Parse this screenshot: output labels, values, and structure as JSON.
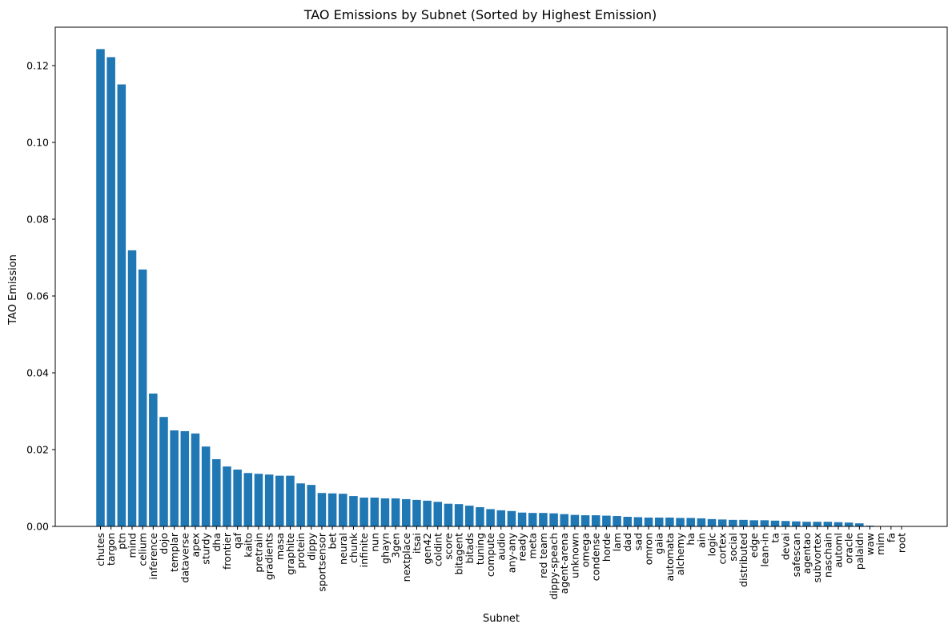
{
  "chart_data": {
    "type": "bar",
    "title": "TAO Emissions by Subnet (Sorted by Highest Emission)",
    "xlabel": "Subnet",
    "ylabel": "TAO Emission",
    "ylim": [
      0,
      0.13
    ],
    "yticks": [
      "0.00",
      "0.02",
      "0.04",
      "0.06",
      "0.08",
      "0.10",
      "0.12"
    ],
    "bar_color": "#1f77b4",
    "grid": false,
    "categories": [
      "chutes",
      "targon",
      "ptn",
      "mind",
      "celium",
      "inference",
      "dojo",
      "templar",
      "dataverse",
      "apex",
      "sturdy",
      "dha",
      "frontier",
      "qaf",
      "kaito",
      "pretrain",
      "gradients",
      "masa",
      "graphite",
      "protein",
      "dippy",
      "sportsensor",
      "bet",
      "neural",
      "chunk",
      "infinite",
      "nun",
      "ghayn",
      "3gen",
      "nextplace",
      "itsai",
      "gen42",
      "coldint",
      "score",
      "bitagent",
      "bitads",
      "tuning",
      "compute",
      "audio",
      "any-any",
      "ready",
      "meta",
      "red team",
      "dippy-speach",
      "agent-arena",
      "unknown",
      "omega",
      "condense",
      "horde",
      "lam",
      "dad",
      "sad",
      "omron",
      "gaia",
      "automata",
      "alchemy",
      "ha",
      "ain",
      "logic",
      "cortex",
      "social",
      "distributed",
      "edge",
      "lean-in",
      "ta",
      "devai",
      "safescan",
      "agentao",
      "subvortex",
      "naschain",
      "automl",
      "oracle",
      "palaidn",
      "waw",
      "mim",
      "fa",
      "root"
    ],
    "values": [
      0.1243,
      0.1222,
      0.1151,
      0.0719,
      0.0669,
      0.0346,
      0.0285,
      0.025,
      0.0248,
      0.0242,
      0.0208,
      0.0175,
      0.0156,
      0.0148,
      0.0139,
      0.0137,
      0.0135,
      0.0132,
      0.0132,
      0.0112,
      0.0108,
      0.0087,
      0.0086,
      0.0085,
      0.0079,
      0.0075,
      0.0075,
      0.0073,
      0.0073,
      0.0071,
      0.0069,
      0.0067,
      0.0064,
      0.0059,
      0.0058,
      0.0054,
      0.005,
      0.0045,
      0.0042,
      0.004,
      0.0036,
      0.0035,
      0.0035,
      0.0034,
      0.0032,
      0.003,
      0.0029,
      0.0029,
      0.0028,
      0.0027,
      0.0025,
      0.0024,
      0.0023,
      0.0023,
      0.0023,
      0.0022,
      0.0022,
      0.0021,
      0.0019,
      0.0018,
      0.0017,
      0.0017,
      0.0016,
      0.0016,
      0.0015,
      0.0014,
      0.0013,
      0.0012,
      0.0012,
      0.0012,
      0.0011,
      0.001,
      0.0008,
      0.0002,
      0.0,
      0.0,
      0.0
    ]
  }
}
